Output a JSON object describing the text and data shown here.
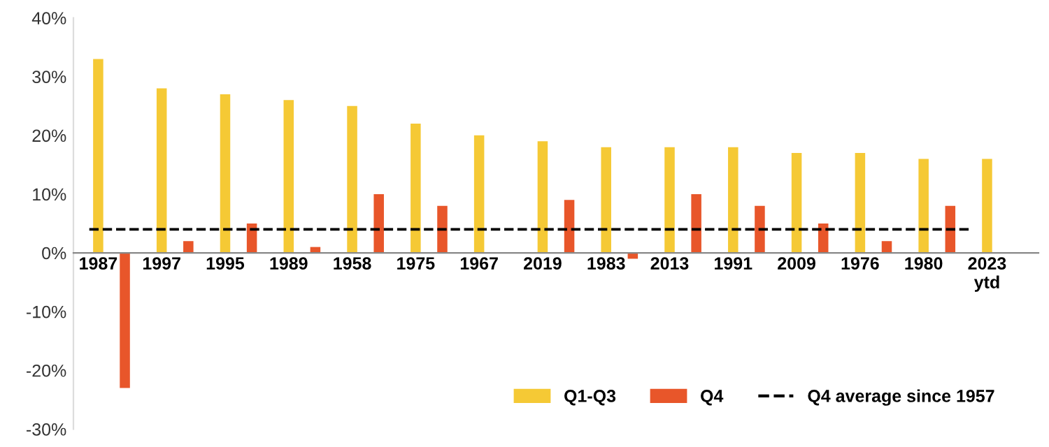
{
  "chart_data": {
    "type": "bar",
    "categories": [
      "1987",
      "1997",
      "1995",
      "1989",
      "1958",
      "1975",
      "1967",
      "2019",
      "1983",
      "2013",
      "1991",
      "2009",
      "1976",
      "1980",
      "2023\nytd"
    ],
    "series": [
      {
        "name": "Q1-Q3",
        "color": "#f5c935",
        "values": [
          33,
          28,
          27,
          26,
          25,
          22,
          20,
          19,
          18,
          18,
          18,
          17,
          17,
          16,
          16
        ]
      },
      {
        "name": "Q4",
        "color": "#e8562a",
        "values": [
          -23,
          2,
          5,
          1,
          10,
          8,
          0,
          9,
          -1,
          10,
          8,
          5,
          2,
          8,
          null
        ]
      }
    ],
    "ref_lines": [
      {
        "axis": "y",
        "value": 4,
        "label": "Q4 average since 1957",
        "color": "#000000",
        "line_style": "dashed"
      }
    ],
    "ylim": [
      -30,
      40
    ],
    "yticks": [
      {
        "value": -30,
        "label": "-30%"
      },
      {
        "value": -20,
        "label": "-20%"
      },
      {
        "value": -10,
        "label": "-10%"
      },
      {
        "value": 0,
        "label": "0%"
      },
      {
        "value": 10,
        "label": "10%"
      },
      {
        "value": 20,
        "label": "20%"
      },
      {
        "value": 30,
        "label": "30%"
      },
      {
        "value": 40,
        "label": "40%"
      }
    ],
    "grid": false,
    "legend": "bottom right"
  }
}
